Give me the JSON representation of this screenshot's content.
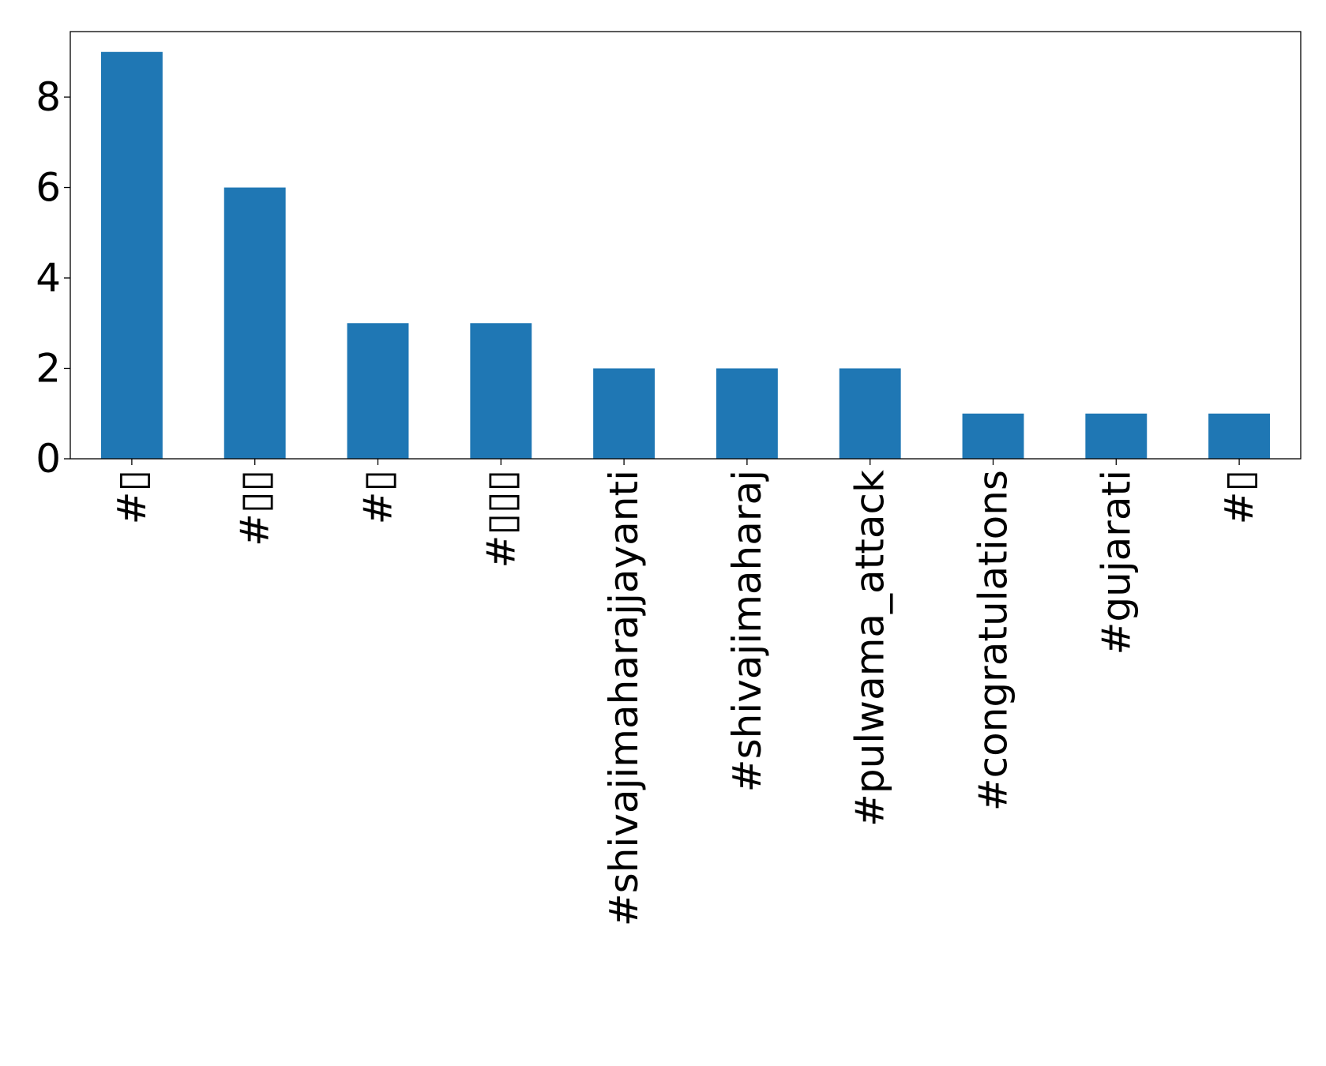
{
  "chart_data": {
    "type": "bar",
    "categories": [
      "#▯",
      "#▯▯",
      "#▯",
      "#▯▯▯",
      "#shivajimaharajjayanti",
      "#shivajimaharaj",
      "#pulwama_attack",
      "#congratulations",
      "#gujarati",
      "#▯"
    ],
    "values": [
      9,
      6,
      3,
      3,
      2,
      2,
      2,
      1,
      1,
      1
    ],
    "ylim": [
      0,
      9.45
    ],
    "yticks": [
      0,
      2,
      4,
      6,
      8
    ],
    "ytick_labels": [
      "0",
      "2",
      "4",
      "6",
      "8"
    ],
    "title": "",
    "xlabel": "",
    "ylabel": "",
    "grid": false,
    "legend": "none",
    "colors": {
      "bar": "#1f77b4",
      "axis": "#000000",
      "background": "#ffffff"
    }
  }
}
